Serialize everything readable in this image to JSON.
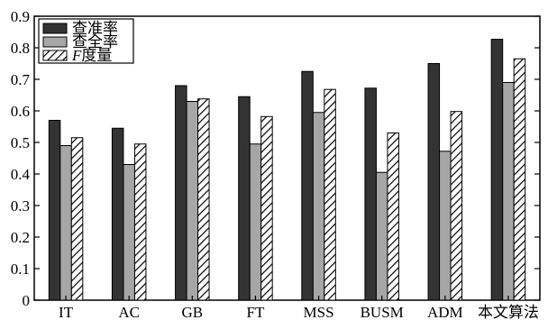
{
  "chart_data": {
    "type": "bar",
    "title": "",
    "xlabel": "",
    "ylabel": "",
    "ylim": [
      0,
      0.9
    ],
    "yticks": [
      "0",
      "0.1",
      "0.2",
      "0.3",
      "0.4",
      "0.5",
      "0.6",
      "0.7",
      "0.8",
      "0.9"
    ],
    "grid": false,
    "legend_position": "top-left",
    "categories": [
      "IT",
      "AC",
      "GB",
      "FT",
      "MSS",
      "BUSM",
      "ADM",
      "本文算法"
    ],
    "series": [
      {
        "name": "查准率",
        "color": "#333333",
        "pattern": "solid",
        "values": [
          0.57,
          0.545,
          0.68,
          0.645,
          0.725,
          0.672,
          0.75,
          0.827
        ]
      },
      {
        "name": "查全率",
        "color": "#a6a6a6",
        "pattern": "solid",
        "values": [
          0.49,
          0.43,
          0.63,
          0.495,
          0.595,
          0.405,
          0.472,
          0.69
        ]
      },
      {
        "name": "F度量",
        "color": "#ffffff",
        "pattern": "hatch",
        "values": [
          0.515,
          0.495,
          0.638,
          0.582,
          0.668,
          0.53,
          0.598,
          0.765
        ]
      }
    ]
  }
}
